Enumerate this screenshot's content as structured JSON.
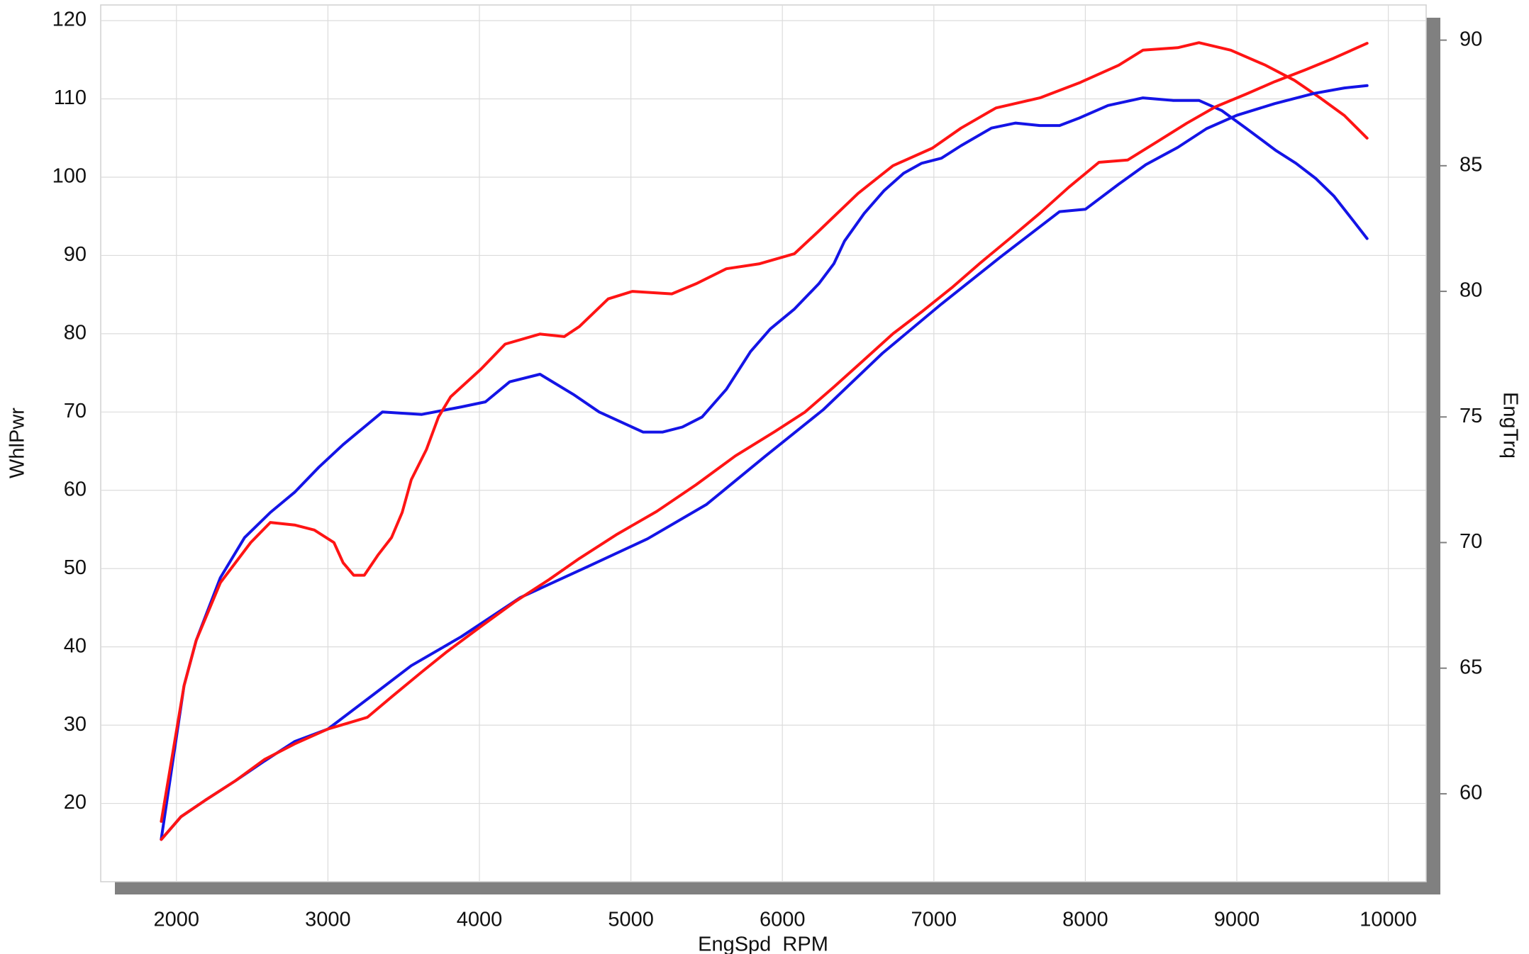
{
  "chart_data": {
    "type": "line",
    "x_label": "EngSpd  RPM",
    "y_label": "WhlPwr",
    "y2_label": "EngTrq",
    "xlim": [
      1500,
      10250
    ],
    "ylim": [
      10,
      122
    ],
    "y2lim": [
      56.5,
      91.4
    ],
    "xticks": [
      2000,
      3000,
      4000,
      5000,
      6000,
      7000,
      8000,
      9000,
      10000
    ],
    "yticks": [
      20,
      30,
      40,
      50,
      60,
      70,
      80,
      90,
      100,
      110,
      120
    ],
    "y2ticks": [
      60,
      65,
      70,
      75,
      80,
      85,
      90
    ],
    "grid": true,
    "series": [
      {
        "color": "#1414e6",
        "axis": "y2",
        "x": [
          1900,
          2050,
          2130,
          2290,
          2450,
          2620,
          2780,
          2940,
          3100,
          3200,
          3360,
          3620,
          3880,
          4040,
          4200,
          4400,
          4620,
          4790,
          5080,
          5210,
          5340,
          5470,
          5630,
          5790,
          5920,
          6080,
          6240,
          6340,
          6410,
          6540,
          6670,
          6800,
          6920,
          7050,
          7180,
          7380,
          7540,
          7700,
          7830,
          7960,
          8150,
          8380,
          8580,
          8750,
          8900,
          9060,
          9260,
          9390,
          9520,
          9640,
          9770,
          9860
        ],
        "values": [
          58.2,
          64.3,
          66.1,
          68.6,
          70.2,
          71.2,
          72.0,
          73.0,
          73.9,
          74.4,
          75.2,
          75.1,
          75.4,
          75.6,
          76.4,
          76.7,
          75.9,
          75.2,
          74.4,
          74.4,
          74.6,
          75.0,
          76.1,
          77.6,
          78.5,
          79.3,
          80.3,
          81.1,
          82.0,
          83.1,
          84.0,
          84.7,
          85.1,
          85.3,
          85.8,
          86.5,
          86.7,
          86.6,
          86.6,
          86.9,
          87.4,
          87.7,
          87.6,
          87.6,
          87.2,
          86.5,
          85.6,
          85.1,
          84.5,
          83.8,
          82.8,
          82.1
        ]
      },
      {
        "color": "#ff1414",
        "axis": "y2",
        "x": [
          1900,
          2050,
          2130,
          2290,
          2490,
          2620,
          2780,
          2910,
          3040,
          3100,
          3170,
          3240,
          3330,
          3420,
          3490,
          3550,
          3650,
          3730,
          3810,
          4010,
          4170,
          4400,
          4560,
          4660,
          4850,
          5010,
          5270,
          5430,
          5630,
          5850,
          6080,
          6240,
          6500,
          6730,
          6990,
          7180,
          7410,
          7700,
          7960,
          8220,
          8380,
          8610,
          8750,
          8960,
          9190,
          9380,
          9550,
          9710,
          9860
        ],
        "values": [
          58.9,
          64.3,
          66.1,
          68.4,
          70.0,
          70.8,
          70.7,
          70.5,
          70.0,
          69.2,
          68.7,
          68.7,
          69.5,
          70.2,
          71.2,
          72.5,
          73.7,
          75.0,
          75.8,
          76.9,
          77.9,
          78.3,
          78.2,
          78.6,
          79.7,
          80.0,
          79.9,
          80.3,
          80.9,
          81.1,
          81.5,
          82.4,
          83.9,
          85.0,
          85.7,
          86.5,
          87.3,
          87.7,
          88.3,
          89.0,
          89.6,
          89.7,
          89.9,
          89.6,
          89.0,
          88.4,
          87.7,
          87.0,
          86.1
        ]
      },
      {
        "color": "#1414e6",
        "x": [
          1900,
          2030,
          2190,
          2390,
          2580,
          2780,
          3000,
          3300,
          3550,
          3880,
          4270,
          4720,
          5110,
          5500,
          5890,
          6270,
          6660,
          7050,
          7440,
          7830,
          8000,
          8220,
          8400,
          8610,
          8800,
          9000,
          9250,
          9510,
          9710,
          9860
        ],
        "values": [
          15.4,
          18.3,
          20.4,
          22.9,
          25.4,
          27.9,
          29.5,
          33.9,
          37.6,
          41.3,
          46.3,
          50.3,
          53.8,
          58.2,
          64.4,
          70.3,
          77.5,
          83.8,
          89.8,
          95.6,
          95.9,
          99.1,
          101.6,
          103.8,
          106.2,
          107.9,
          109.4,
          110.7,
          111.4,
          111.7
        ]
      },
      {
        "color": "#ff1414",
        "x": [
          1900,
          2030,
          2190,
          2390,
          2580,
          2780,
          3000,
          3260,
          3420,
          3620,
          3780,
          4010,
          4230,
          4460,
          4660,
          4910,
          5170,
          5430,
          5690,
          5950,
          6150,
          6340,
          6530,
          6730,
          6920,
          7120,
          7310,
          7510,
          7700,
          7890,
          8090,
          8280,
          8480,
          8670,
          8860,
          9060,
          9250,
          9450,
          9640,
          9860
        ],
        "values": [
          15.4,
          18.3,
          20.4,
          22.9,
          25.6,
          27.6,
          29.5,
          31.0,
          33.6,
          36.8,
          39.3,
          42.6,
          45.7,
          48.6,
          51.3,
          54.4,
          57.3,
          60.7,
          64.4,
          67.5,
          70.0,
          73.2,
          76.5,
          80.0,
          82.8,
          85.9,
          89.1,
          92.3,
          95.4,
          98.7,
          101.9,
          102.2,
          104.6,
          106.9,
          109.0,
          110.6,
          112.2,
          113.7,
          115.2,
          117.1
        ]
      }
    ]
  }
}
